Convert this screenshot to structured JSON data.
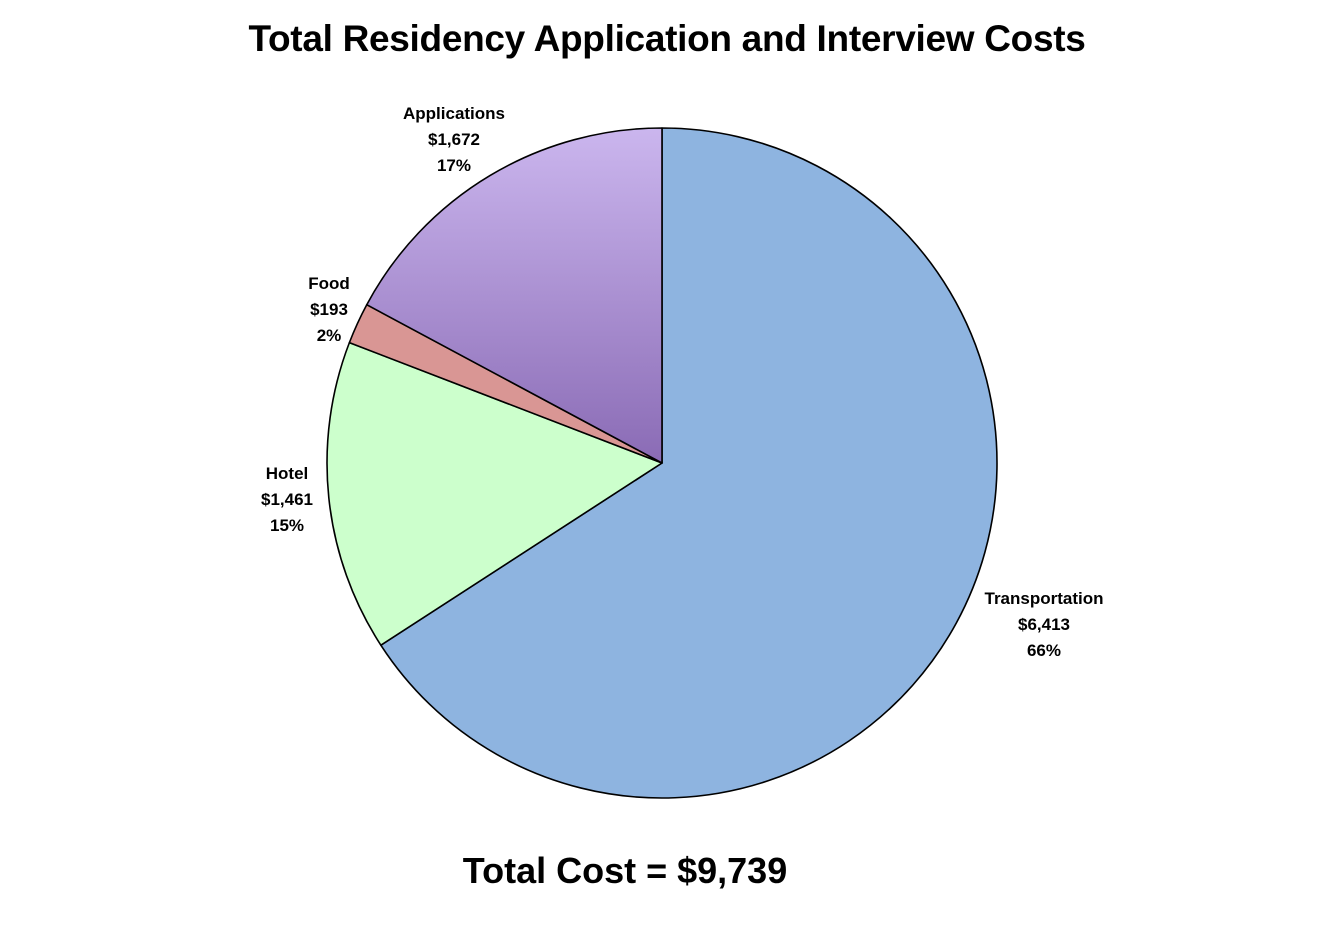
{
  "chart_data": {
    "type": "pie",
    "title": "Total Residency Application and Interview Costs",
    "slices": [
      {
        "label": "Transportation",
        "value": 6413,
        "value_text": "$6,413",
        "percent_text": "66%",
        "color": "#8EB4E0"
      },
      {
        "label": "Hotel",
        "value": 1461,
        "value_text": "$1,461",
        "percent_text": "15%",
        "color": "#CCFFCC"
      },
      {
        "label": "Food",
        "value": 193,
        "value_text": "$193",
        "percent_text": "2%",
        "color": "#D99694"
      },
      {
        "label": "Applications",
        "value": 1672,
        "value_text": "$1,672",
        "percent_text": "17%",
        "color_top": "#CBB6EE",
        "color_bottom": "#8A6BB5"
      }
    ],
    "start_position": "12 o'clock",
    "direction": "clockwise",
    "legend": "none",
    "footer": "Total Cost = $9,739"
  }
}
